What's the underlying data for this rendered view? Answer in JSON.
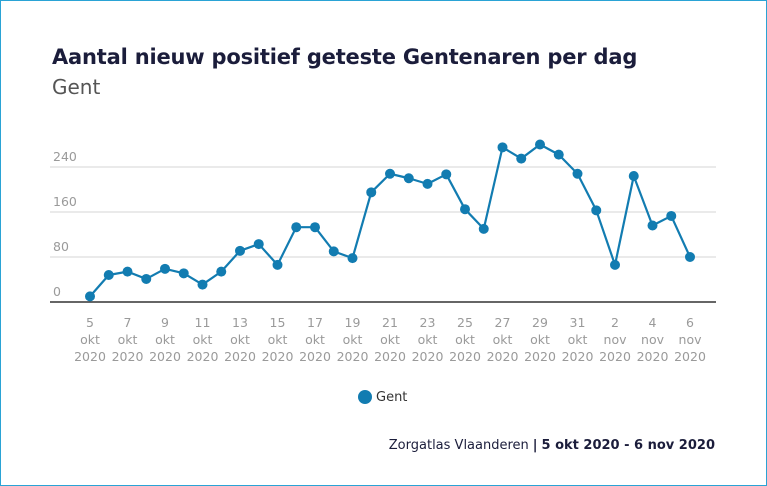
{
  "colors": {
    "series": "#127cb1",
    "grid": "#d6d6d6",
    "axis": "#333333",
    "tick_text": "#9a9a9a",
    "border": "#2aa3d5"
  },
  "chart_data": {
    "type": "line",
    "title": "Aantal nieuw positief geteste Gentenaren per dag",
    "subtitle": "Gent",
    "xlabel": "",
    "ylabel": "",
    "ylim": [
      0,
      260
    ],
    "yticks": [
      0,
      80,
      160,
      240
    ],
    "grid": true,
    "legend_position": "bottom-center",
    "x": [
      "5 okt",
      "6 okt",
      "7 okt",
      "8 okt",
      "9 okt",
      "10 okt",
      "11 okt",
      "12 okt",
      "13 okt",
      "14 okt",
      "15 okt",
      "16 okt",
      "17 okt",
      "18 okt",
      "19 okt",
      "20 okt",
      "21 okt",
      "22 okt",
      "23 okt",
      "24 okt",
      "25 okt",
      "26 okt",
      "27 okt",
      "28 okt",
      "29 okt",
      "30 okt",
      "31 okt",
      "1 nov",
      "2 nov",
      "3 nov",
      "4 nov",
      "5 nov",
      "6 nov"
    ],
    "x_tick_labels": [
      {
        "day": "5",
        "month": "okt",
        "year": "2020"
      },
      {
        "day": "7",
        "month": "okt",
        "year": "2020"
      },
      {
        "day": "9",
        "month": "okt",
        "year": "2020"
      },
      {
        "day": "11",
        "month": "okt",
        "year": "2020"
      },
      {
        "day": "13",
        "month": "okt",
        "year": "2020"
      },
      {
        "day": "15",
        "month": "okt",
        "year": "2020"
      },
      {
        "day": "17",
        "month": "okt",
        "year": "2020"
      },
      {
        "day": "19",
        "month": "okt",
        "year": "2020"
      },
      {
        "day": "21",
        "month": "okt",
        "year": "2020"
      },
      {
        "day": "23",
        "month": "okt",
        "year": "2020"
      },
      {
        "day": "25",
        "month": "okt",
        "year": "2020"
      },
      {
        "day": "27",
        "month": "okt",
        "year": "2020"
      },
      {
        "day": "29",
        "month": "okt",
        "year": "2020"
      },
      {
        "day": "31",
        "month": "okt",
        "year": "2020"
      },
      {
        "day": "2",
        "month": "nov",
        "year": "2020"
      },
      {
        "day": "4",
        "month": "nov",
        "year": "2020"
      },
      {
        "day": "6",
        "month": "nov",
        "year": "2020"
      }
    ],
    "series": [
      {
        "name": "Gent",
        "values": [
          10,
          48,
          54,
          41,
          59,
          51,
          31,
          54,
          91,
          103,
          66,
          133,
          133,
          90,
          78,
          195,
          228,
          220,
          210,
          227,
          165,
          130,
          275,
          255,
          280,
          262,
          228,
          163,
          66,
          224,
          136,
          153,
          80
        ]
      }
    ]
  },
  "legend": {
    "label": "Gent"
  },
  "source": {
    "name": "Zorgatlas Vlaanderen",
    "separator": "|",
    "range": "5 okt 2020 - 6 nov 2020"
  }
}
